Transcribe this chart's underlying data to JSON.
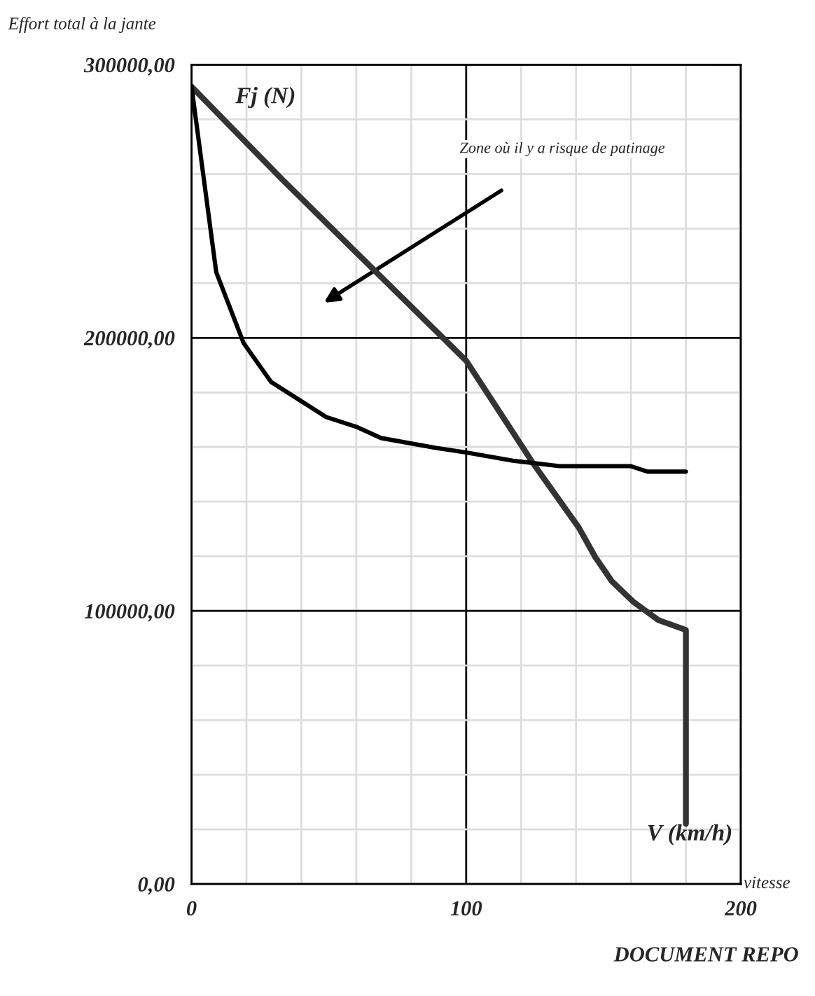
{
  "chart_data": {
    "type": "line",
    "ylabel": "Effort total à la jante",
    "xlabel": "vitesse",
    "series": [
      {
        "color": "#333333",
        "x": [
          0,
          33,
          100,
          124,
          141,
          147,
          153,
          161,
          170,
          180,
          180
        ],
        "values": [
          292000,
          258000,
          191600,
          154600,
          130500,
          119700,
          110900,
          103200,
          96600,
          93000,
          22000
        ]
      },
      {
        "color": "#000000",
        "x": [
          0,
          9,
          19,
          29,
          49,
          60,
          69,
          89,
          100,
          117,
          134,
          160,
          166,
          180
        ],
        "values": [
          292000,
          224000,
          198000,
          183800,
          171000,
          167400,
          163300,
          159700,
          158000,
          155000,
          153000,
          153000,
          151000,
          151000
        ]
      }
    ],
    "xlim": [
      0,
      200
    ],
    "ylim": [
      0,
      300000
    ],
    "xticks": [
      {
        "value": 0,
        "label": "0"
      },
      {
        "value": 20,
        "label": null
      },
      {
        "value": 40,
        "label": null
      },
      {
        "value": 60,
        "label": null
      },
      {
        "value": 80,
        "label": null
      },
      {
        "value": 100,
        "label": "100"
      },
      {
        "value": 120,
        "label": null
      },
      {
        "value": 140,
        "label": null
      },
      {
        "value": 160,
        "label": null
      },
      {
        "value": 180,
        "label": null
      },
      {
        "value": 200,
        "label": "200"
      }
    ],
    "yticks": [
      {
        "value": 0,
        "label": "0,00"
      },
      {
        "value": 20000,
        "label": null
      },
      {
        "value": 40000,
        "label": null
      },
      {
        "value": 60000,
        "label": null
      },
      {
        "value": 80000,
        "label": null
      },
      {
        "value": 100000,
        "label": "100000,00"
      },
      {
        "value": 120000,
        "label": null
      },
      {
        "value": 140000,
        "label": null
      },
      {
        "value": 160000,
        "label": null
      },
      {
        "value": 180000,
        "label": null
      },
      {
        "value": 200000,
        "label": "200000,00"
      },
      {
        "value": 220000,
        "label": null
      },
      {
        "value": 240000,
        "label": null
      },
      {
        "value": 260000,
        "label": null
      },
      {
        "value": 280000,
        "label": null
      },
      {
        "value": 300000,
        "label": "300000,00"
      }
    ],
    "grid": true,
    "annotations": [
      "Fj (N)",
      "Zone où il y a risque de patinage",
      "V (km/h)",
      "DOCUMENT REPO"
    ]
  }
}
